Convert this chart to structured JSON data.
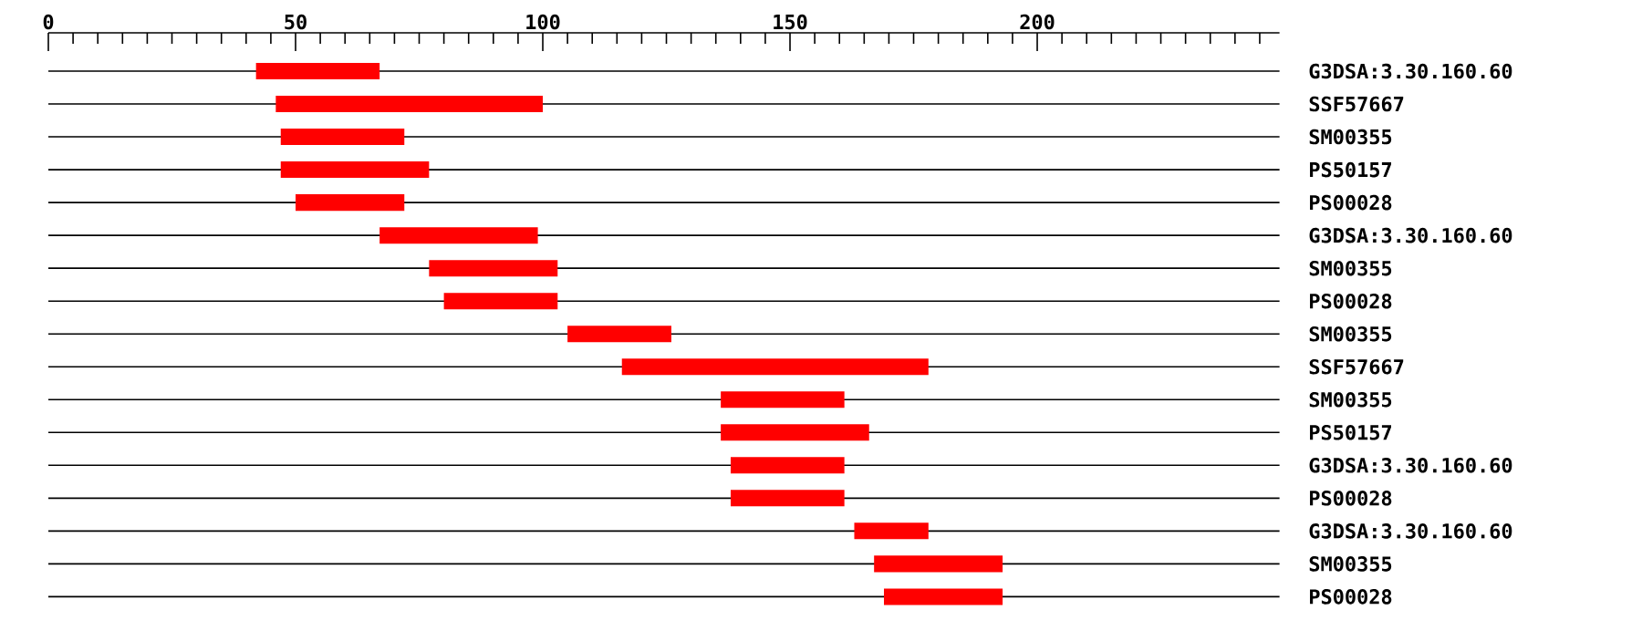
{
  "chart_data": {
    "type": "bar",
    "orientation": "horizontal",
    "categories": [
      "G3DSA:3.30.160.60",
      "SSF57667",
      "SM00355",
      "PS50157",
      "PS00028",
      "G3DSA:3.30.160.60",
      "SM00355",
      "PS00028",
      "SM00355",
      "SSF57667",
      "SM00355",
      "PS50157",
      "G3DSA:3.30.160.60",
      "PS00028",
      "G3DSA:3.30.160.60",
      "SM00355",
      "PS00028"
    ],
    "base": [
      42,
      46,
      47,
      47,
      50,
      67,
      77,
      80,
      105,
      116,
      136,
      136,
      138,
      138,
      163,
      167,
      169
    ],
    "values": [
      25,
      54,
      25,
      30,
      22,
      32,
      26,
      23,
      21,
      62,
      25,
      30,
      23,
      23,
      15,
      26,
      24
    ],
    "color": "#ff0000",
    "xlim": [
      0,
      249
    ],
    "xticks": [
      0,
      {
        "value": 5,
        "label": null
      },
      {
        "value": 10,
        "label": null
      },
      {
        "value": 15,
        "label": null
      },
      {
        "value": 20,
        "label": null
      },
      {
        "value": 25,
        "label": null
      },
      {
        "value": 30,
        "label": null
      },
      {
        "value": 35,
        "label": null
      },
      {
        "value": 40,
        "label": null
      },
      {
        "value": 45,
        "label": null
      },
      50,
      {
        "value": 55,
        "label": null
      },
      {
        "value": 60,
        "label": null
      },
      {
        "value": 65,
        "label": null
      },
      {
        "value": 70,
        "label": null
      },
      {
        "value": 75,
        "label": null
      },
      {
        "value": 80,
        "label": null
      },
      {
        "value": 85,
        "label": null
      },
      {
        "value": 90,
        "label": null
      },
      {
        "value": 95,
        "label": null
      },
      100,
      {
        "value": 105,
        "label": null
      },
      {
        "value": 110,
        "label": null
      },
      {
        "value": 115,
        "label": null
      },
      {
        "value": 120,
        "label": null
      },
      {
        "value": 125,
        "label": null
      },
      {
        "value": 130,
        "label": null
      },
      {
        "value": 135,
        "label": null
      },
      {
        "value": 140,
        "label": null
      },
      {
        "value": 145,
        "label": null
      },
      150,
      {
        "value": 155,
        "label": null
      },
      {
        "value": 160,
        "label": null
      },
      {
        "value": 165,
        "label": null
      },
      {
        "value": 170,
        "label": null
      },
      {
        "value": 175,
        "label": null
      },
      {
        "value": 180,
        "label": null
      },
      {
        "value": 185,
        "label": null
      },
      {
        "value": 190,
        "label": null
      },
      {
        "value": 195,
        "label": null
      },
      200,
      {
        "value": 205,
        "label": null
      },
      {
        "value": 210,
        "label": null
      },
      {
        "value": 215,
        "label": null
      },
      {
        "value": 220,
        "label": null
      },
      {
        "value": 225,
        "label": null
      },
      {
        "value": 230,
        "label": null
      },
      {
        "value": 235,
        "label": null
      },
      {
        "value": 240,
        "label": null
      },
      {
        "value": 245,
        "label": null
      }
    ],
    "grid": "y"
  }
}
